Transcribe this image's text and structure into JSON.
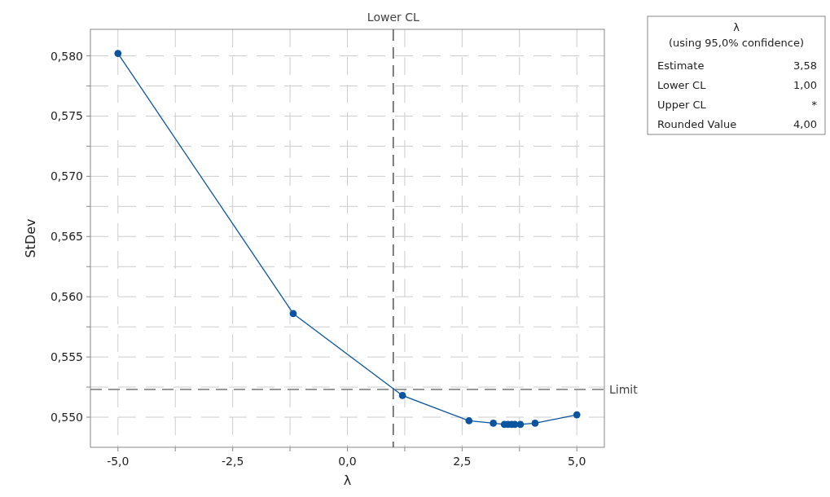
{
  "chart_data": {
    "type": "line",
    "xlabel": "λ",
    "ylabel": "StDev",
    "xlim": [
      -5.6,
      5.6
    ],
    "ylim": [
      0.5475,
      0.5822
    ],
    "xticks": [
      {
        "value": -5,
        "label": "-5,0"
      },
      {
        "value": -3.75,
        "label": null
      },
      {
        "value": -2.5,
        "label": "-2,5"
      },
      {
        "value": -1.25,
        "label": null
      },
      {
        "value": 0,
        "label": "0,0"
      },
      {
        "value": 1.25,
        "label": null
      },
      {
        "value": 2.5,
        "label": "2,5"
      },
      {
        "value": 3.75,
        "label": null
      },
      {
        "value": 5,
        "label": "5,0"
      }
    ],
    "yticks": [
      {
        "value": 0.55,
        "label": "0,550"
      },
      {
        "value": 0.5525,
        "label": null
      },
      {
        "value": 0.555,
        "label": "0,555"
      },
      {
        "value": 0.5575,
        "label": null
      },
      {
        "value": 0.56,
        "label": "0,560"
      },
      {
        "value": 0.5625,
        "label": null
      },
      {
        "value": 0.565,
        "label": "0,565"
      },
      {
        "value": 0.5675,
        "label": null
      },
      {
        "value": 0.57,
        "label": "0,570"
      },
      {
        "value": 0.5725,
        "label": null
      },
      {
        "value": 0.575,
        "label": "0,575"
      },
      {
        "value": 0.5775,
        "label": null
      },
      {
        "value": 0.58,
        "label": "0,580"
      }
    ],
    "grid": true,
    "marker": "circle",
    "line_style": "solid",
    "series": [
      {
        "color": "#0b55a0",
        "x": [
          -5,
          -1.18,
          1.2,
          2.65,
          3.18,
          3.42,
          3.5,
          3.58,
          3.65,
          3.77,
          4.09,
          5
        ],
        "values": [
          0.5802,
          0.5586,
          0.5518,
          0.5497,
          0.5495,
          0.5494,
          0.5494,
          0.5494,
          0.5494,
          0.5494,
          0.5495,
          0.5502
        ]
      }
    ],
    "ref_lines": [
      {
        "axis": "x",
        "value": 1,
        "label": "Lower CL",
        "color": "#555555",
        "line_style": "dashed"
      },
      {
        "axis": "y",
        "value": 0.5523,
        "label": "Limit",
        "color": "#777777",
        "line_style": "dashed"
      }
    ],
    "annotations": [
      "λ",
      "(using 95,0% confidence)",
      "Estimate",
      "3,58",
      "Lower CL",
      "1,00",
      "Upper CL",
      "*",
      "Rounded Value",
      "4,00"
    ]
  }
}
